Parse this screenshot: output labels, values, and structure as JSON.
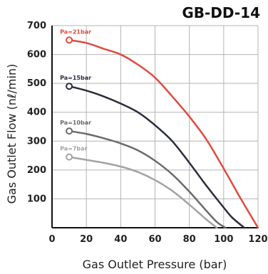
{
  "chart_data": {
    "type": "line",
    "title": "GB-DD-14",
    "xlabel": "Gas Outlet Pressure (bar)",
    "ylabel": "Gas Outlet Flow (nℓ/min)",
    "xlim": [
      0,
      120
    ],
    "ylim": [
      0,
      700
    ],
    "xticks": [
      0,
      20,
      40,
      60,
      80,
      100,
      120
    ],
    "yticks": [
      100,
      200,
      300,
      400,
      500,
      600,
      700
    ],
    "grid": true,
    "series": [
      {
        "name": "Pa=21bar",
        "color": "#e04b3f",
        "x": [
          10,
          20,
          30,
          40,
          50,
          60,
          70,
          80,
          90,
          100,
          110,
          120
        ],
        "y": [
          650,
          640,
          620,
          600,
          565,
          520,
          455,
          385,
          305,
          205,
          100,
          0
        ]
      },
      {
        "name": "Pa=15bar",
        "color": "#2b2d3c",
        "x": [
          10,
          20,
          30,
          40,
          50,
          60,
          70,
          80,
          90,
          100,
          105,
          112
        ],
        "y": [
          490,
          475,
          455,
          430,
          400,
          355,
          300,
          225,
          145,
          70,
          35,
          0
        ]
      },
      {
        "name": "Pa=10bar",
        "color": "#6b6b6b",
        "x": [
          10,
          20,
          30,
          40,
          50,
          60,
          70,
          80,
          90,
          96,
          101
        ],
        "y": [
          335,
          325,
          310,
          292,
          268,
          232,
          185,
          125,
          58,
          20,
          0
        ]
      },
      {
        "name": "Pa=7bar",
        "color": "#a3a3a3",
        "x": [
          10,
          20,
          30,
          40,
          50,
          60,
          70,
          80,
          90,
          96
        ],
        "y": [
          245,
          235,
          225,
          212,
          193,
          165,
          128,
          80,
          28,
          0
        ]
      }
    ]
  }
}
